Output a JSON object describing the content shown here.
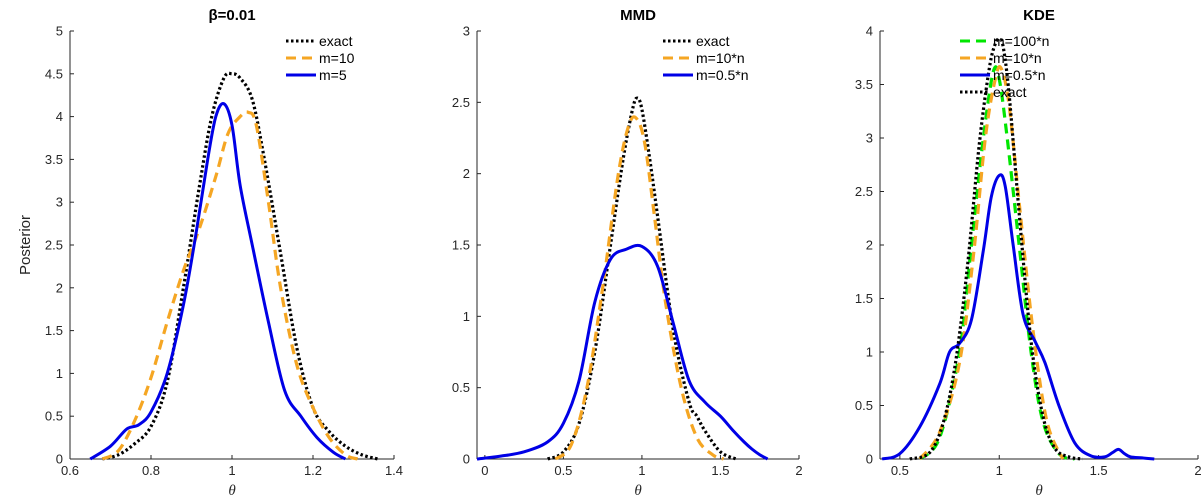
{
  "chart_data": [
    {
      "type": "line",
      "title": "β=0.01",
      "xlabel": "θ",
      "ylabel": "Posterior",
      "xlim": [
        0.6,
        1.4
      ],
      "ylim": [
        0,
        5
      ],
      "xticks": [
        0.6,
        0.8,
        1,
        1.2,
        1.4
      ],
      "xtick_labels": [
        "0.6",
        "0.8",
        "1",
        "1.2",
        "1.4"
      ],
      "yticks": [
        0,
        0.5,
        1,
        1.5,
        2,
        2.5,
        3,
        3.5,
        4,
        4.5,
        5
      ],
      "ytick_labels": [
        "0",
        "0.5",
        "1",
        "1.5",
        "2",
        "2.5",
        "3",
        "3.5",
        "4",
        "4.5",
        "5"
      ],
      "legend_position": "top-right",
      "series": [
        {
          "name": "exact",
          "color": "#000000",
          "style": "dotted",
          "x": [
            0.68,
            0.72,
            0.76,
            0.8,
            0.84,
            0.88,
            0.92,
            0.95,
            0.98,
            1.0,
            1.02,
            1.05,
            1.08,
            1.12,
            1.16,
            1.2,
            1.24,
            1.28,
            1.32,
            1.36
          ],
          "y": [
            0,
            0.05,
            0.18,
            0.38,
            0.9,
            2.0,
            3.2,
            4.0,
            4.45,
            4.5,
            4.45,
            4.2,
            3.5,
            2.4,
            1.3,
            0.6,
            0.32,
            0.15,
            0.05,
            0
          ]
        },
        {
          "name": "m=10",
          "color": "#F5A623",
          "style": "dashed",
          "x": [
            0.68,
            0.72,
            0.76,
            0.8,
            0.84,
            0.88,
            0.92,
            0.96,
            0.99,
            1.02,
            1.04,
            1.06,
            1.09,
            1.12,
            1.16,
            1.2,
            1.24,
            1.28,
            1.31
          ],
          "y": [
            0,
            0.1,
            0.45,
            0.95,
            1.6,
            2.2,
            2.7,
            3.3,
            3.8,
            4.0,
            4.05,
            3.9,
            3.0,
            2.0,
            1.1,
            0.6,
            0.25,
            0.05,
            0
          ]
        },
        {
          "name": "m=5",
          "color": "#0000E6",
          "style": "solid",
          "x": [
            0.65,
            0.7,
            0.74,
            0.77,
            0.8,
            0.84,
            0.88,
            0.91,
            0.94,
            0.96,
            0.98,
            1.0,
            1.02,
            1.05,
            1.09,
            1.13,
            1.17,
            1.21,
            1.25,
            1.28
          ],
          "y": [
            0,
            0.15,
            0.35,
            0.4,
            0.55,
            1.0,
            1.8,
            2.6,
            3.5,
            4.0,
            4.15,
            3.9,
            3.2,
            2.5,
            1.6,
            0.8,
            0.5,
            0.25,
            0.08,
            0
          ]
        }
      ]
    },
    {
      "type": "line",
      "title": "MMD",
      "xlabel": "θ",
      "ylabel": "",
      "xlim": [
        -0.05,
        2
      ],
      "ylim": [
        0,
        3
      ],
      "xticks": [
        0,
        0.5,
        1,
        1.5,
        2
      ],
      "xtick_labels": [
        "0",
        "0.5",
        "1",
        "1.5",
        "2"
      ],
      "yticks": [
        0,
        0.5,
        1,
        1.5,
        2,
        2.5,
        3
      ],
      "ytick_labels": [
        "0",
        "0.5",
        "1",
        "1.5",
        "2",
        "2.5",
        "3"
      ],
      "legend_position": "top-right",
      "series": [
        {
          "name": "exact",
          "color": "#000000",
          "style": "dotted",
          "x": [
            0.4,
            0.5,
            0.6,
            0.7,
            0.8,
            0.88,
            0.94,
            0.97,
            1.0,
            1.05,
            1.1,
            1.2,
            1.3,
            1.35,
            1.4,
            1.5,
            1.6
          ],
          "y": [
            0,
            0.05,
            0.25,
            0.75,
            1.5,
            2.1,
            2.45,
            2.53,
            2.45,
            2.1,
            1.7,
            0.9,
            0.4,
            0.3,
            0.2,
            0.05,
            0
          ]
        },
        {
          "name": "m=10*n",
          "color": "#F5A623",
          "style": "dashed",
          "x": [
            0.45,
            0.55,
            0.65,
            0.75,
            0.85,
            0.92,
            0.97,
            1.02,
            1.08,
            1.15,
            1.25,
            1.35,
            1.45,
            1.52
          ],
          "y": [
            0,
            0.1,
            0.5,
            1.2,
            2.0,
            2.35,
            2.38,
            2.2,
            1.7,
            1.1,
            0.5,
            0.15,
            0.03,
            0
          ]
        },
        {
          "name": "m=0.5*n",
          "color": "#0000E6",
          "style": "solid",
          "x": [
            -0.05,
            0.1,
            0.25,
            0.4,
            0.5,
            0.6,
            0.7,
            0.8,
            0.9,
            1.0,
            1.1,
            1.2,
            1.3,
            1.4,
            1.5,
            1.58,
            1.65,
            1.7,
            1.75,
            1.8
          ],
          "y": [
            0,
            0.02,
            0.05,
            0.12,
            0.25,
            0.55,
            1.1,
            1.4,
            1.47,
            1.49,
            1.35,
            0.95,
            0.55,
            0.4,
            0.3,
            0.2,
            0.12,
            0.07,
            0.03,
            0
          ]
        }
      ]
    },
    {
      "type": "line",
      "title": "KDE",
      "xlabel": "θ",
      "ylabel": "",
      "xlim": [
        0.4,
        2
      ],
      "ylim": [
        0,
        4
      ],
      "xticks": [
        0.5,
        1,
        1.5,
        2
      ],
      "xtick_labels": [
        "0.5",
        "1",
        "1.5",
        "2"
      ],
      "yticks": [
        0,
        0.5,
        1,
        1.5,
        2,
        2.5,
        3,
        3.5,
        4
      ],
      "ytick_labels": [
        "0",
        "0.5",
        "1",
        "1.5",
        "2",
        "2.5",
        "3",
        "3.5",
        "4"
      ],
      "legend_position": "top-right",
      "series": [
        {
          "name": "m=100*n",
          "color": "#00E600",
          "style": "dashed",
          "x": [
            0.6,
            0.7,
            0.8,
            0.86,
            0.92,
            0.97,
            1.0,
            1.04,
            1.1,
            1.16,
            1.22,
            1.3,
            1.38
          ],
          "y": [
            0,
            0.2,
            1.0,
            2.0,
            3.0,
            3.62,
            3.55,
            3.0,
            2.0,
            1.0,
            0.35,
            0.05,
            0
          ]
        },
        {
          "name": "m=10*n",
          "color": "#F5A623",
          "style": "dashed",
          "x": [
            0.6,
            0.7,
            0.8,
            0.87,
            0.93,
            0.98,
            1.01,
            1.05,
            1.1,
            1.17,
            1.24,
            1.32
          ],
          "y": [
            0,
            0.25,
            0.9,
            1.9,
            3.0,
            3.55,
            3.65,
            3.3,
            2.4,
            1.2,
            0.35,
            0
          ]
        },
        {
          "name": "m=0.5*n",
          "color": "#0000E6",
          "style": "solid",
          "x": [
            0.41,
            0.5,
            0.6,
            0.7,
            0.75,
            0.8,
            0.86,
            0.92,
            0.96,
            1.0,
            1.03,
            1.07,
            1.12,
            1.18,
            1.23,
            1.3,
            1.38,
            1.46,
            1.53,
            1.57,
            1.6,
            1.63,
            1.66,
            1.72,
            1.78
          ],
          "y": [
            0,
            0.05,
            0.3,
            0.7,
            1.0,
            1.08,
            1.3,
            1.95,
            2.45,
            2.65,
            2.55,
            2.0,
            1.35,
            1.1,
            0.9,
            0.5,
            0.15,
            0.03,
            0.02,
            0.06,
            0.09,
            0.05,
            0.02,
            0.01,
            0
          ]
        },
        {
          "name": "exact",
          "color": "#000000",
          "style": "dotted",
          "x": [
            0.55,
            0.65,
            0.72,
            0.78,
            0.84,
            0.9,
            0.95,
            0.98,
            1.0,
            1.02,
            1.05,
            1.1,
            1.16,
            1.22,
            1.28,
            1.35,
            1.42
          ],
          "y": [
            0,
            0.06,
            0.35,
            0.9,
            1.8,
            2.95,
            3.65,
            3.88,
            3.92,
            3.85,
            3.4,
            2.3,
            1.1,
            0.4,
            0.1,
            0.02,
            0
          ]
        }
      ]
    }
  ]
}
